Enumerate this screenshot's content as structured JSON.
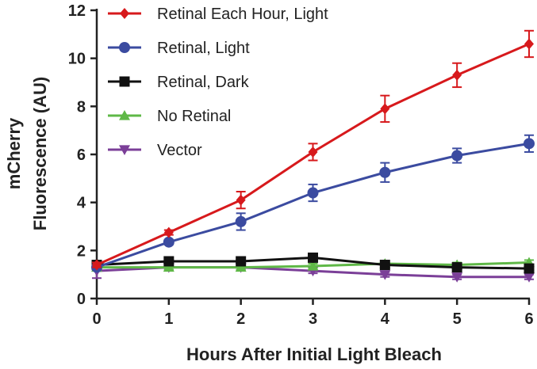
{
  "chart_data": {
    "type": "line",
    "xlabel": "Hours After Initial Light Bleach",
    "ylabel_lines": [
      "mCherry",
      "Fluorescence (AU)"
    ],
    "x": [
      0,
      1,
      2,
      3,
      4,
      5,
      6
    ],
    "xlim": [
      0,
      6
    ],
    "ylim": [
      0,
      12
    ],
    "x_ticks": [
      "0",
      "1",
      "2",
      "3",
      "4",
      "5",
      "6"
    ],
    "y_ticks": [
      "0",
      "2",
      "4",
      "6",
      "8",
      "10",
      "12"
    ],
    "grid": false,
    "legend_position": "top-left",
    "series": [
      {
        "name": "Retinal Each Hour, Light",
        "color": "#d7191c",
        "marker": "diamond",
        "values": [
          1.4,
          2.75,
          4.1,
          6.1,
          7.9,
          9.3,
          10.6
        ],
        "errors": [
          0.1,
          0.1,
          0.35,
          0.35,
          0.55,
          0.5,
          0.55
        ]
      },
      {
        "name": "Retinal, Light",
        "color": "#3b4ba0",
        "marker": "circle",
        "values": [
          1.3,
          2.35,
          3.2,
          4.4,
          5.25,
          5.95,
          6.45
        ],
        "errors": [
          0.1,
          0.1,
          0.35,
          0.35,
          0.4,
          0.3,
          0.35
        ]
      },
      {
        "name": "Retinal, Dark",
        "color": "#111111",
        "marker": "square",
        "values": [
          1.4,
          1.55,
          1.55,
          1.7,
          1.4,
          1.3,
          1.25
        ],
        "errors": [
          0.1,
          0.1,
          0.1,
          0.15,
          0.1,
          0.1,
          0.1
        ]
      },
      {
        "name": "No Retinal",
        "color": "#5fb847",
        "marker": "triangle-up",
        "values": [
          1.3,
          1.3,
          1.3,
          1.35,
          1.45,
          1.4,
          1.5
        ],
        "errors": [
          0.1,
          0.1,
          0.1,
          0.1,
          0.1,
          0.1,
          0.1
        ]
      },
      {
        "name": "Vector",
        "color": "#7b3f98",
        "marker": "triangle-down",
        "values": [
          1.15,
          1.3,
          1.3,
          1.15,
          1.0,
          0.9,
          0.9
        ],
        "errors": [
          0.3,
          0.1,
          0.1,
          0.1,
          0.1,
          0.1,
          0.1
        ]
      }
    ]
  }
}
